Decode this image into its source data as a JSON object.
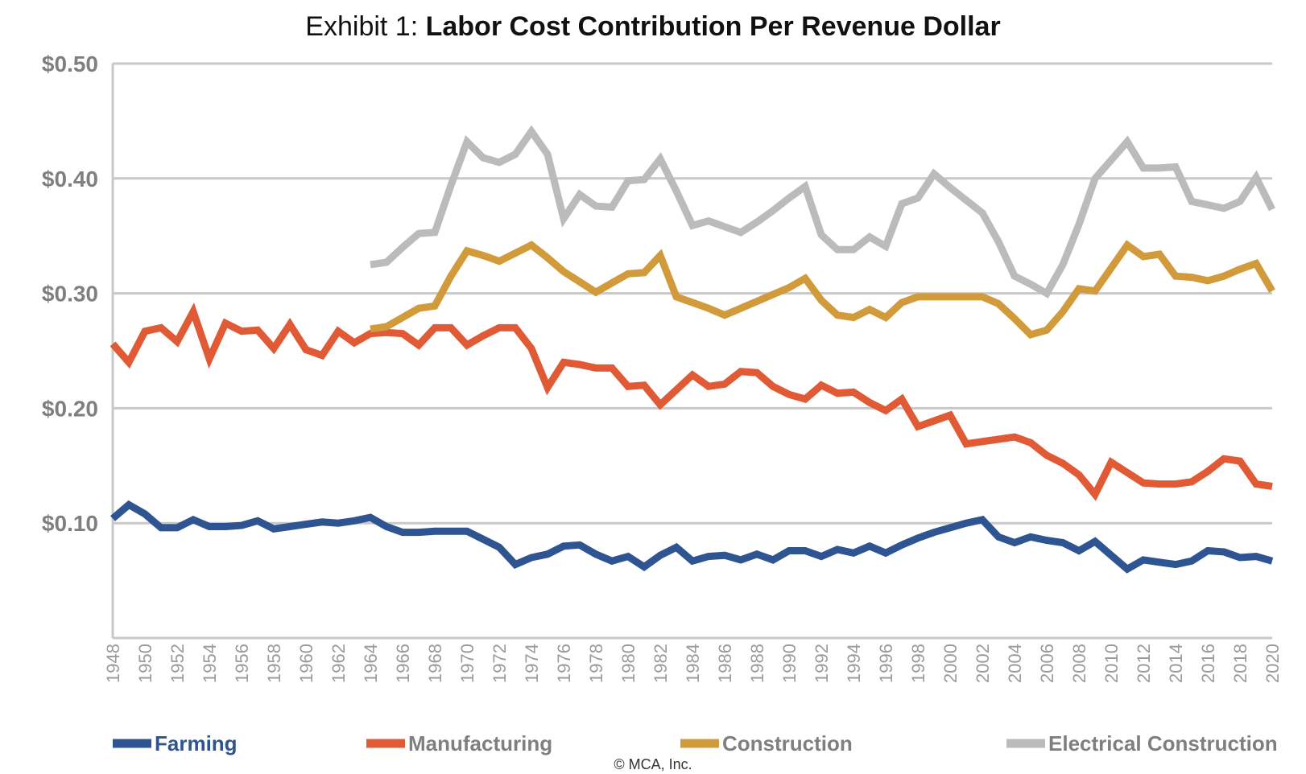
{
  "chart_data": {
    "type": "line",
    "title_prefix": "Exhibit 1:",
    "title": "Labor Cost Contribution Per Revenue Dollar",
    "footer": "© MCA, Inc.",
    "y_tick_labels": [
      "$0.50",
      "$0.40",
      "$0.30",
      "$0.20",
      "$0.10"
    ],
    "ylim": [
      0.0,
      0.5
    ],
    "x_tick_labels": [
      "1948",
      "1950",
      "1952",
      "1954",
      "1956",
      "1958",
      "1960",
      "1962",
      "1964",
      "1966",
      "1968",
      "1970",
      "1972",
      "1974",
      "1976",
      "1978",
      "1980",
      "1982",
      "1984",
      "1986",
      "1988",
      "1990",
      "1992",
      "1994",
      "1996",
      "1998",
      "2000",
      "2002",
      "2004",
      "2006",
      "2008",
      "2010",
      "2012",
      "2014",
      "2016",
      "2018",
      "2020"
    ],
    "grid": true,
    "legend_position": "bottom",
    "series": [
      {
        "name": "Farming",
        "color": "#2e5591",
        "x": [
          1948,
          1949,
          1950,
          1951,
          1952,
          1953,
          1954,
          1955,
          1956,
          1957,
          1958,
          1959,
          1960,
          1961,
          1962,
          1963,
          1964,
          1965,
          1966,
          1967,
          1968,
          1969,
          1970,
          1971,
          1972,
          1973,
          1974,
          1975,
          1976,
          1977,
          1978,
          1979,
          1980,
          1981,
          1982,
          1983,
          1984,
          1985,
          1986,
          1987,
          1988,
          1989,
          1990,
          1991,
          1992,
          1993,
          1994,
          1995,
          1996,
          1997,
          1998,
          1999,
          2000,
          2001,
          2002,
          2003,
          2004,
          2005,
          2006,
          2007,
          2008,
          2009,
          2010,
          2011,
          2012,
          2013,
          2014,
          2015,
          2016,
          2017,
          2018,
          2019,
          2020
        ],
        "values": [
          0.104,
          0.116,
          0.108,
          0.096,
          0.096,
          0.103,
          0.097,
          0.097,
          0.098,
          0.102,
          0.095,
          0.097,
          0.099,
          0.101,
          0.1,
          0.102,
          0.105,
          0.097,
          0.092,
          0.092,
          0.093,
          0.093,
          0.093,
          0.086,
          0.079,
          0.064,
          0.07,
          0.073,
          0.08,
          0.081,
          0.073,
          0.067,
          0.071,
          0.062,
          0.072,
          0.079,
          0.067,
          0.071,
          0.072,
          0.068,
          0.073,
          0.068,
          0.076,
          0.076,
          0.071,
          0.077,
          0.074,
          0.08,
          0.074,
          0.081,
          0.087,
          0.092,
          0.096,
          0.1,
          0.103,
          0.088,
          0.083,
          0.088,
          0.085,
          0.083,
          0.076,
          0.084,
          0.072,
          0.06,
          0.068,
          0.066,
          0.064,
          0.067,
          0.076,
          0.075,
          0.07,
          0.071,
          0.067
        ]
      },
      {
        "name": "Manufacturing",
        "color": "#e05a35",
        "x": [
          1948,
          1949,
          1950,
          1951,
          1952,
          1953,
          1954,
          1955,
          1956,
          1957,
          1958,
          1959,
          1960,
          1961,
          1962,
          1963,
          1964,
          1965,
          1966,
          1967,
          1968,
          1969,
          1970,
          1971,
          1972,
          1973,
          1974,
          1975,
          1976,
          1977,
          1978,
          1979,
          1980,
          1981,
          1982,
          1983,
          1984,
          1985,
          1986,
          1987,
          1988,
          1989,
          1990,
          1991,
          1992,
          1993,
          1994,
          1995,
          1996,
          1997,
          1998,
          1999,
          2000,
          2001,
          2002,
          2003,
          2004,
          2005,
          2006,
          2007,
          2008,
          2009,
          2010,
          2011,
          2012,
          2013,
          2014,
          2015,
          2016,
          2017,
          2018,
          2019,
          2020
        ],
        "values": [
          0.256,
          0.24,
          0.267,
          0.27,
          0.258,
          0.284,
          0.243,
          0.274,
          0.267,
          0.268,
          0.252,
          0.273,
          0.251,
          0.246,
          0.267,
          0.257,
          0.265,
          0.266,
          0.265,
          0.255,
          0.27,
          0.27,
          0.255,
          0.263,
          0.27,
          0.27,
          0.252,
          0.218,
          0.24,
          0.238,
          0.235,
          0.235,
          0.219,
          0.22,
          0.203,
          0.216,
          0.229,
          0.219,
          0.221,
          0.232,
          0.231,
          0.219,
          0.212,
          0.208,
          0.22,
          0.213,
          0.214,
          0.205,
          0.198,
          0.208,
          0.184,
          0.189,
          0.194,
          0.169,
          0.171,
          0.173,
          0.175,
          0.17,
          0.159,
          0.152,
          0.142,
          0.125,
          0.153,
          0.144,
          0.135,
          0.134,
          0.134,
          0.136,
          0.145,
          0.156,
          0.154,
          0.134,
          0.132
        ]
      },
      {
        "name": "Construction",
        "color": "#d19a3b",
        "x": [
          1964,
          1965,
          1966,
          1967,
          1968,
          1969,
          1970,
          1971,
          1972,
          1973,
          1974,
          1975,
          1976,
          1977,
          1978,
          1979,
          1980,
          1981,
          1982,
          1983,
          1984,
          1985,
          1986,
          1987,
          1988,
          1989,
          1990,
          1991,
          1992,
          1993,
          1994,
          1995,
          1996,
          1997,
          1998,
          1999,
          2000,
          2001,
          2002,
          2003,
          2004,
          2005,
          2006,
          2007,
          2008,
          2009,
          2010,
          2011,
          2012,
          2013,
          2014,
          2015,
          2016,
          2017,
          2018,
          2019,
          2020
        ],
        "values": [
          0.269,
          0.271,
          0.279,
          0.287,
          0.289,
          0.315,
          0.337,
          0.333,
          0.328,
          0.335,
          0.342,
          0.331,
          0.319,
          0.31,
          0.301,
          0.309,
          0.317,
          0.318,
          0.333,
          0.297,
          0.292,
          0.287,
          0.281,
          0.287,
          0.293,
          0.299,
          0.305,
          0.313,
          0.294,
          0.281,
          0.279,
          0.286,
          0.279,
          0.292,
          0.297,
          0.297,
          0.297,
          0.297,
          0.297,
          0.291,
          0.278,
          0.264,
          0.268,
          0.284,
          0.304,
          0.302,
          0.322,
          0.342,
          0.332,
          0.334,
          0.315,
          0.314,
          0.311,
          0.315,
          0.321,
          0.326,
          0.302
        ]
      },
      {
        "name": "Electrical Construction",
        "color": "#bbbbbb",
        "x": [
          1964,
          1965,
          1966,
          1967,
          1968,
          1969,
          1970,
          1971,
          1972,
          1973,
          1974,
          1975,
          1976,
          1977,
          1978,
          1979,
          1980,
          1981,
          1982,
          1983,
          1984,
          1985,
          1986,
          1987,
          1988,
          1989,
          1990,
          1991,
          1992,
          1993,
          1994,
          1995,
          1996,
          1997,
          1998,
          1999,
          2000,
          2001,
          2002,
          2003,
          2004,
          2005,
          2006,
          2007,
          2008,
          2009,
          2010,
          2011,
          2012,
          2013,
          2014,
          2015,
          2016,
          2017,
          2018,
          2019,
          2020
        ],
        "values": [
          0.325,
          0.327,
          0.34,
          0.352,
          0.353,
          0.394,
          0.432,
          0.418,
          0.414,
          0.421,
          0.441,
          0.421,
          0.365,
          0.386,
          0.376,
          0.375,
          0.398,
          0.399,
          0.417,
          0.389,
          0.359,
          0.363,
          0.358,
          0.353,
          0.362,
          0.372,
          0.383,
          0.393,
          0.351,
          0.338,
          0.338,
          0.349,
          0.341,
          0.378,
          0.383,
          0.404,
          0.392,
          0.381,
          0.37,
          0.345,
          0.315,
          0.308,
          0.3,
          0.325,
          0.36,
          0.4,
          0.416,
          0.432,
          0.409,
          0.409,
          0.41,
          0.38,
          0.377,
          0.374,
          0.38,
          0.401,
          0.373
        ]
      }
    ]
  }
}
